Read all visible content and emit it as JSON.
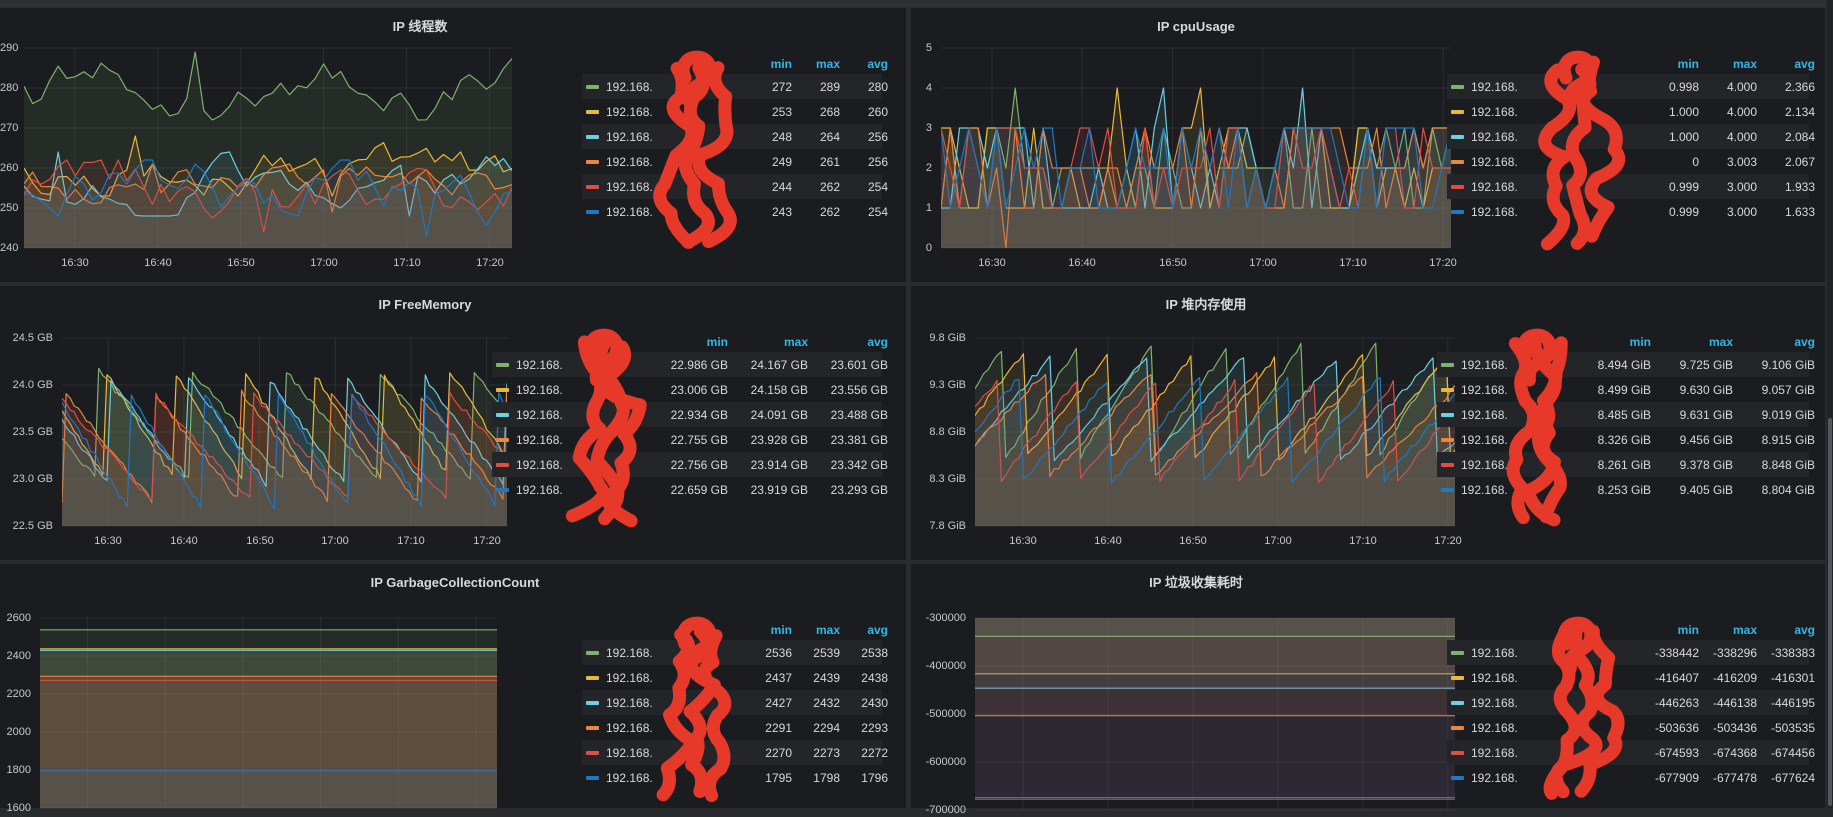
{
  "page": {
    "theme": {
      "page_bg": "#2a2b2f",
      "panel_bg": "#1b1c20",
      "grid_color": "rgba(255,255,255,0.07)",
      "axis_text": "#c7c8ca",
      "title_text": "#d8d9da",
      "legend_header_color": "#33b5e5",
      "legend_row_alt": "#242529",
      "scribble_color": "#ee3a2b",
      "series_palette": [
        "#7EB26D",
        "#EAB839",
        "#6ED0E0",
        "#EF843C",
        "#E24D42",
        "#1F78C1"
      ]
    }
  },
  "chart_data": [
    {
      "type": "line",
      "title": "IP 线程数",
      "pattern": "noisy",
      "grid": true,
      "legend_position": "right-table",
      "legend_columns": [
        "min",
        "max",
        "avg"
      ],
      "x_ticks": [
        "16:30",
        "16:40",
        "16:50",
        "17:00",
        "17:10",
        "17:20"
      ],
      "y_ticks": [
        "290",
        "280",
        "270",
        "260",
        "250",
        "240"
      ],
      "ylim": [
        240,
        290
      ],
      "series": [
        {
          "name": "192.168.",
          "name_redacted": true,
          "color": "#7EB26D",
          "min": "272",
          "max": "289",
          "avg": "280"
        },
        {
          "name": "192.168.",
          "name_redacted": true,
          "color": "#EAB839",
          "min": "253",
          "max": "268",
          "avg": "260"
        },
        {
          "name": "192.168.",
          "name_redacted": true,
          "color": "#6ED0E0",
          "min": "248",
          "max": "264",
          "avg": "256"
        },
        {
          "name": "192.168.",
          "name_redacted": true,
          "color": "#EF843C",
          "min": "249",
          "max": "261",
          "avg": "256"
        },
        {
          "name": "192.168.",
          "name_redacted": true,
          "color": "#E24D42",
          "min": "244",
          "max": "262",
          "avg": "254"
        },
        {
          "name": "192.168.",
          "name_redacted": true,
          "color": "#1F78C1",
          "min": "243",
          "max": "262",
          "avg": "254"
        }
      ]
    },
    {
      "type": "line",
      "title": "IP cpuUsage",
      "pattern": "int-steps",
      "grid": true,
      "legend_position": "right-table",
      "legend_columns": [
        "min",
        "max",
        "avg"
      ],
      "x_ticks": [
        "16:30",
        "16:40",
        "16:50",
        "17:00",
        "17:10",
        "17:20"
      ],
      "y_ticks": [
        "5",
        "4",
        "3",
        "2",
        "1",
        "0"
      ],
      "ylim": [
        0,
        5
      ],
      "series": [
        {
          "name": "192.168.",
          "name_redacted": true,
          "color": "#7EB26D",
          "min": "0.998",
          "max": "4.000",
          "avg": "2.366"
        },
        {
          "name": "192.168.",
          "name_redacted": true,
          "color": "#EAB839",
          "min": "1.000",
          "max": "4.000",
          "avg": "2.134"
        },
        {
          "name": "192.168.",
          "name_redacted": true,
          "color": "#6ED0E0",
          "min": "1.000",
          "max": "4.000",
          "avg": "2.084"
        },
        {
          "name": "192.168.",
          "name_redacted": true,
          "color": "#EF843C",
          "min": "0",
          "max": "3.003",
          "avg": "2.067"
        },
        {
          "name": "192.168.",
          "name_redacted": true,
          "color": "#E24D42",
          "min": "0.999",
          "max": "3.000",
          "avg": "1.933"
        },
        {
          "name": "192.168.",
          "name_redacted": true,
          "color": "#1F78C1",
          "min": "0.999",
          "max": "3.000",
          "avg": "1.633"
        }
      ]
    },
    {
      "type": "line",
      "title": "IP FreeMemory",
      "pattern": "saw-down",
      "grid": true,
      "legend_position": "right-table",
      "legend_columns": [
        "min",
        "max",
        "avg"
      ],
      "x_ticks": [
        "16:30",
        "16:40",
        "16:50",
        "17:00",
        "17:10",
        "17:20"
      ],
      "y_ticks": [
        "24.5 GB",
        "24.0 GB",
        "23.5 GB",
        "23.0 GB",
        "22.5 GB"
      ],
      "ylim": [
        22.5,
        24.5
      ],
      "series": [
        {
          "name": "192.168.",
          "name_redacted": true,
          "color": "#7EB26D",
          "min": "22.986 GB",
          "max": "24.167 GB",
          "avg": "23.601 GB"
        },
        {
          "name": "192.168.",
          "name_redacted": true,
          "color": "#EAB839",
          "min": "23.006 GB",
          "max": "24.158 GB",
          "avg": "23.556 GB"
        },
        {
          "name": "192.168.",
          "name_redacted": true,
          "color": "#6ED0E0",
          "min": "22.934 GB",
          "max": "24.091 GB",
          "avg": "23.488 GB"
        },
        {
          "name": "192.168.",
          "name_redacted": true,
          "color": "#EF843C",
          "min": "22.755 GB",
          "max": "23.928 GB",
          "avg": "23.381 GB"
        },
        {
          "name": "192.168.",
          "name_redacted": true,
          "color": "#E24D42",
          "min": "22.756 GB",
          "max": "23.914 GB",
          "avg": "23.342 GB"
        },
        {
          "name": "192.168.",
          "name_redacted": true,
          "color": "#1F78C1",
          "min": "22.659 GB",
          "max": "23.919 GB",
          "avg": "23.293 GB"
        }
      ]
    },
    {
      "type": "line",
      "title": "IP 堆内存使用",
      "pattern": "saw-up",
      "grid": true,
      "legend_position": "right-table",
      "legend_columns": [
        "min",
        "max",
        "avg"
      ],
      "x_ticks": [
        "16:30",
        "16:40",
        "16:50",
        "17:00",
        "17:10",
        "17:20"
      ],
      "y_ticks": [
        "9.8 GiB",
        "9.3 GiB",
        "8.8 GiB",
        "8.3 GiB",
        "7.8 GiB"
      ],
      "ylim": [
        7.8,
        9.8
      ],
      "series": [
        {
          "name": "192.168.",
          "name_redacted": true,
          "color": "#7EB26D",
          "min": "8.494 GiB",
          "max": "9.725 GiB",
          "avg": "9.106 GiB"
        },
        {
          "name": "192.168.",
          "name_redacted": true,
          "color": "#EAB839",
          "min": "8.499 GiB",
          "max": "9.630 GiB",
          "avg": "9.057 GiB"
        },
        {
          "name": "192.168.",
          "name_redacted": true,
          "color": "#6ED0E0",
          "min": "8.485 GiB",
          "max": "9.631 GiB",
          "avg": "9.019 GiB"
        },
        {
          "name": "192.168.",
          "name_redacted": true,
          "color": "#EF843C",
          "min": "8.326 GiB",
          "max": "9.456 GiB",
          "avg": "8.915 GiB"
        },
        {
          "name": "192.168.",
          "name_redacted": true,
          "color": "#E24D42",
          "min": "8.261 GiB",
          "max": "9.378 GiB",
          "avg": "8.848 GiB"
        },
        {
          "name": "192.168.",
          "name_redacted": true,
          "color": "#1F78C1",
          "min": "8.253 GiB",
          "max": "9.405 GiB",
          "avg": "8.804 GiB"
        }
      ]
    },
    {
      "type": "line",
      "title": "IP GarbageCollectionCount",
      "pattern": "flat",
      "grid": true,
      "legend_position": "right-table",
      "legend_columns": [
        "min",
        "max",
        "avg"
      ],
      "x_ticks": [],
      "y_ticks": [
        "2600",
        "2400",
        "2200",
        "2000",
        "1800",
        "1600"
      ],
      "ylim": [
        1600,
        2600
      ],
      "series": [
        {
          "name": "192.168.",
          "name_redacted": true,
          "color": "#7EB26D",
          "min": "2536",
          "max": "2539",
          "avg": "2538"
        },
        {
          "name": "192.168.",
          "name_redacted": true,
          "color": "#EAB839",
          "min": "2437",
          "max": "2439",
          "avg": "2438"
        },
        {
          "name": "192.168.",
          "name_redacted": true,
          "color": "#6ED0E0",
          "min": "2427",
          "max": "2432",
          "avg": "2430"
        },
        {
          "name": "192.168.",
          "name_redacted": true,
          "color": "#EF843C",
          "min": "2291",
          "max": "2294",
          "avg": "2293"
        },
        {
          "name": "192.168.",
          "name_redacted": true,
          "color": "#E24D42",
          "min": "2270",
          "max": "2273",
          "avg": "2272"
        },
        {
          "name": "192.168.",
          "name_redacted": true,
          "color": "#1F78C1",
          "min": "1795",
          "max": "1798",
          "avg": "1796"
        }
      ]
    },
    {
      "type": "line",
      "title": "IP 垃圾收集耗时",
      "pattern": "flat",
      "grid": true,
      "legend_position": "right-table",
      "legend_columns": [
        "min",
        "max",
        "avg"
      ],
      "x_ticks": [],
      "y_ticks": [
        "-300000",
        "-400000",
        "-500000",
        "-600000",
        "-700000"
      ],
      "ylim": [
        -700000,
        -300000
      ],
      "series": [
        {
          "name": "192.168.",
          "name_redacted": true,
          "color": "#7EB26D",
          "min": "-338442",
          "max": "-338296",
          "avg": "-338383"
        },
        {
          "name": "192.168.",
          "name_redacted": true,
          "color": "#EAB839",
          "min": "-416407",
          "max": "-416209",
          "avg": "-416301"
        },
        {
          "name": "192.168.",
          "name_redacted": true,
          "color": "#6ED0E0",
          "min": "-446263",
          "max": "-446138",
          "avg": "-446195"
        },
        {
          "name": "192.168.",
          "name_redacted": true,
          "color": "#EF843C",
          "min": "-503636",
          "max": "-503436",
          "avg": "-503535"
        },
        {
          "name": "192.168.",
          "name_redacted": true,
          "color": "#E24D42",
          "min": "-674593",
          "max": "-674368",
          "avg": "-674456"
        },
        {
          "name": "192.168.",
          "name_redacted": true,
          "color": "#1F78C1",
          "min": "-677909",
          "max": "-677478",
          "avg": "-677624"
        }
      ]
    }
  ]
}
